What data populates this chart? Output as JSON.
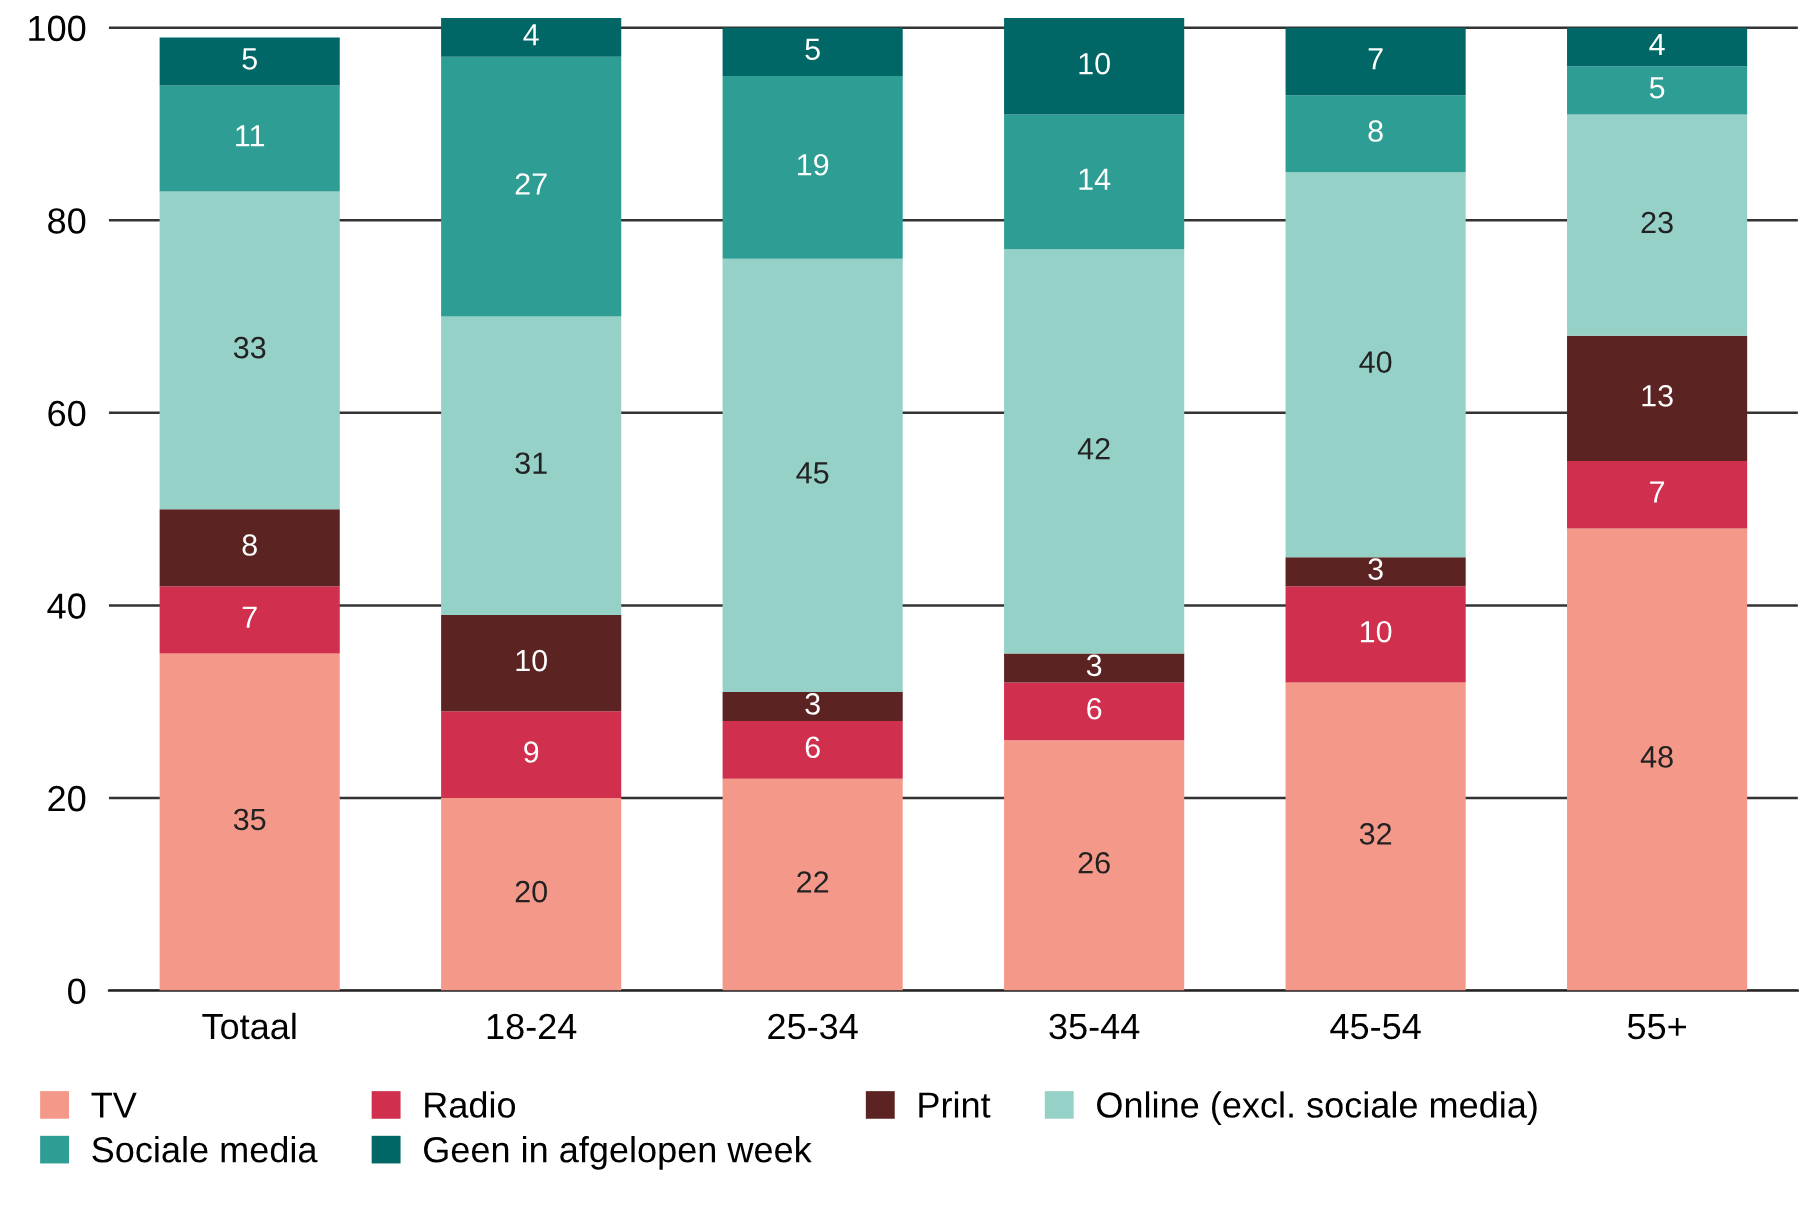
{
  "chart_data": {
    "type": "bar",
    "stacked": true,
    "categories": [
      "Totaal",
      "18-24",
      "25-34",
      "35-44",
      "45-54",
      "55+"
    ],
    "series": [
      {
        "name": "TV",
        "color": "#f4998a",
        "values": [
          35,
          20,
          22,
          26,
          32,
          48
        ]
      },
      {
        "name": "Radio",
        "color": "#d0304e",
        "values": [
          7,
          9,
          6,
          6,
          10,
          7
        ]
      },
      {
        "name": "Print",
        "color": "#5c2323",
        "values": [
          8,
          10,
          3,
          3,
          3,
          13
        ]
      },
      {
        "name": "Online (excl. sociale media)",
        "color": "#96d1c7",
        "values": [
          33,
          31,
          45,
          42,
          40,
          23
        ]
      },
      {
        "name": "Sociale media",
        "color": "#2e9e94",
        "values": [
          11,
          27,
          19,
          14,
          8,
          5
        ]
      },
      {
        "name": "Geen in afgelopen week",
        "color": "#006766",
        "values": [
          5,
          4,
          5,
          10,
          7,
          4
        ]
      }
    ],
    "ylim": [
      0,
      101
    ],
    "yticks": [
      0,
      20,
      40,
      60,
      80,
      100
    ],
    "grid": "y",
    "legend": "bottom",
    "data_labels": true
  }
}
